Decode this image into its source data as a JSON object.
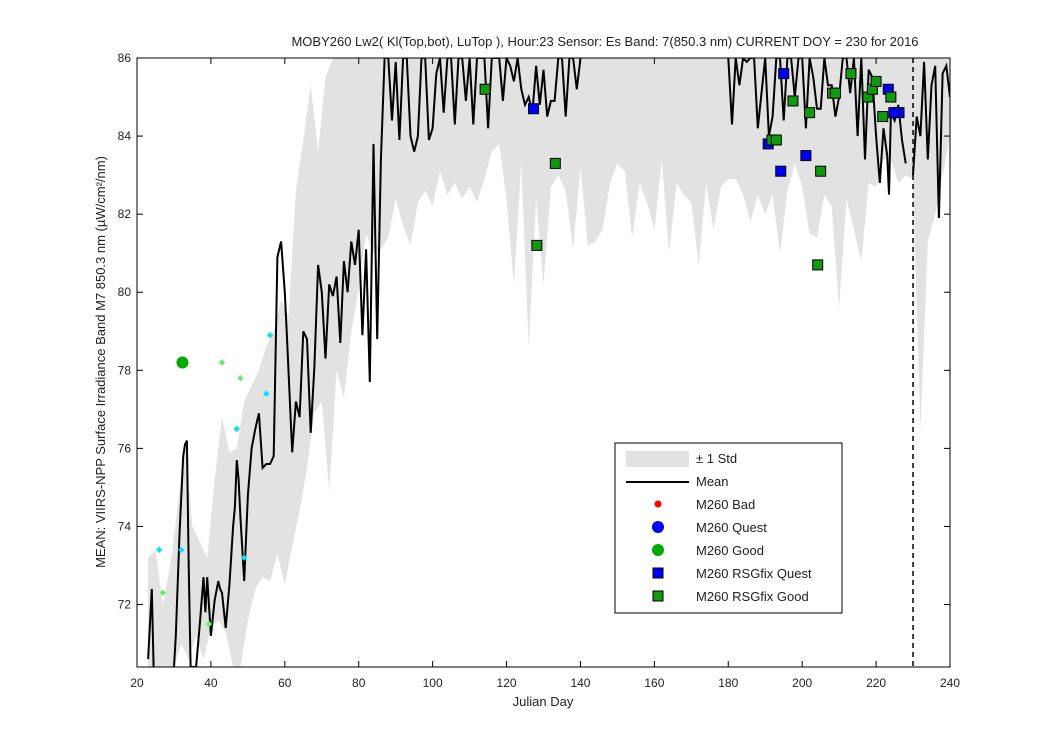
{
  "chart_data": {
    "type": "line",
    "title": "MOBY260   Lw2( Kl(Top,bot), LuTop ),   Hour:23 Sensor: Es Band: 7(850.3 nm)   CURRENT DOY = 230 for 2016",
    "xlabel": "Julian Day",
    "ylabel": "MEAN: VIIRS-NPP Surface Irradiance Band M7 850.3 nm (µW/cm²/nm)",
    "xlim": [
      20,
      240
    ],
    "ylim": [
      70.4,
      86
    ],
    "xticks": [
      "20",
      "40",
      "60",
      "80",
      "100",
      "120",
      "140",
      "160",
      "180",
      "200",
      "220",
      "240"
    ],
    "yticks": [
      "72",
      "74",
      "76",
      "78",
      "80",
      "82",
      "84",
      "86"
    ],
    "current_doy": 230,
    "colors": {
      "std_band": "#e2e2e2",
      "mean_line": "#000000",
      "bad": "#ff0000",
      "quest": "#0000ff",
      "good": "#00aa00",
      "rsg_quest": "#0000ff",
      "rsg_good": "#119911",
      "cyan_small": "#00e5ff",
      "lightgreen_small": "#66ee66"
    },
    "legend": {
      "position": "lower-right",
      "entries": [
        "± 1 Std",
        "Mean",
        "M260 Bad",
        "M260 Quest",
        "M260 Good",
        "M260 RSGfix Quest",
        "M260 RSGfix Good"
      ]
    },
    "mean": [
      [
        23,
        70.6
      ],
      [
        24,
        72.4
      ],
      [
        24.5,
        70.4
      ],
      [
        30,
        70.4
      ],
      [
        30.5,
        71.2
      ],
      [
        31.5,
        73.8
      ],
      [
        32.5,
        75.8
      ],
      [
        33,
        76.1
      ],
      [
        33.5,
        76.2
      ],
      [
        34,
        73.0
      ],
      [
        34.5,
        70.4
      ],
      [
        36,
        70.4
      ],
      [
        37,
        71.5
      ],
      [
        38,
        72.7
      ],
      [
        38.5,
        71.8
      ],
      [
        39,
        72.7
      ],
      [
        40,
        71.2
      ],
      [
        41,
        72.1
      ],
      [
        42,
        72.6
      ],
      [
        42.5,
        72.4
      ],
      [
        43,
        72.3
      ],
      [
        44,
        71.4
      ],
      [
        45,
        72.5
      ],
      [
        46,
        74.0
      ],
      [
        46.5,
        74.5
      ],
      [
        47,
        75.7
      ],
      [
        47.5,
        75.2
      ],
      [
        48,
        74.2
      ],
      [
        49,
        72.6
      ],
      [
        50,
        74.8
      ],
      [
        51,
        76.0
      ],
      [
        52,
        76.5
      ],
      [
        53,
        76.9
      ],
      [
        54,
        75.5
      ],
      [
        55,
        75.6
      ],
      [
        56,
        75.6
      ],
      [
        57,
        75.8
      ],
      [
        58,
        80.9
      ],
      [
        59,
        81.3
      ],
      [
        60,
        80.0
      ],
      [
        60.5,
        79.0
      ],
      [
        62,
        75.9
      ],
      [
        63,
        77.2
      ],
      [
        64,
        76.8
      ],
      [
        65,
        79.0
      ],
      [
        66,
        78.8
      ],
      [
        67,
        76.4
      ],
      [
        68,
        78.1
      ],
      [
        69,
        80.7
      ],
      [
        70,
        80.0
      ],
      [
        71,
        78.3
      ],
      [
        72,
        80.2
      ],
      [
        73,
        79.9
      ],
      [
        74,
        80.4
      ],
      [
        75,
        78.7
      ],
      [
        76,
        80.8
      ],
      [
        77,
        80.0
      ],
      [
        78,
        81.3
      ],
      [
        79,
        80.7
      ],
      [
        80,
        81.6
      ],
      [
        81,
        78.9
      ],
      [
        82,
        81.1
      ],
      [
        83,
        77.7
      ],
      [
        84,
        83.8
      ],
      [
        85,
        78.8
      ],
      [
        86,
        83.4
      ],
      [
        87,
        86.0
      ],
      [
        88,
        86.0
      ],
      [
        89,
        84.4
      ],
      [
        90,
        85.9
      ],
      [
        91,
        83.9
      ],
      [
        92,
        86.0
      ],
      [
        93,
        86.0
      ],
      [
        94,
        84.0
      ],
      [
        95,
        83.6
      ],
      [
        96,
        84.0
      ],
      [
        97,
        86.0
      ],
      [
        98,
        86.0
      ],
      [
        99,
        83.9
      ],
      [
        100,
        84.2
      ],
      [
        101,
        85.6
      ],
      [
        102,
        86.0
      ],
      [
        103,
        84.6
      ],
      [
        104,
        86.0
      ],
      [
        105,
        86.0
      ],
      [
        106,
        84.3
      ],
      [
        107,
        86.0
      ],
      [
        108,
        86.0
      ],
      [
        109,
        84.9
      ],
      [
        110,
        86.0
      ],
      [
        111,
        84.3
      ],
      [
        112,
        86.0
      ],
      [
        113,
        86.0
      ],
      [
        114,
        86.0
      ],
      [
        115,
        84.2
      ],
      [
        116,
        86.0
      ],
      [
        117,
        86.0
      ],
      [
        118,
        86.0
      ],
      [
        119,
        84.9
      ],
      [
        120,
        86.0
      ],
      [
        121,
        85.8
      ],
      [
        122,
        85.4
      ],
      [
        123,
        86.0
      ],
      [
        124,
        85.2
      ],
      [
        125,
        84.8
      ],
      [
        126,
        85.0
      ],
      [
        127,
        84.6
      ],
      [
        128,
        85.8
      ],
      [
        129,
        84.8
      ],
      [
        130,
        85.7
      ],
      [
        131,
        84.5
      ],
      [
        132,
        84.9
      ],
      [
        133,
        84.9
      ],
      [
        134,
        86.0
      ],
      [
        135,
        86.0
      ],
      [
        136,
        84.5
      ],
      [
        137,
        86.0
      ],
      [
        138,
        86.0
      ],
      [
        139,
        85.2
      ],
      [
        140,
        86.0
      ],
      [
        142,
        86.0
      ],
      [
        144,
        85.4
      ],
      [
        146,
        86.0
      ],
      [
        148,
        86.0
      ],
      [
        150,
        85.0
      ],
      [
        152,
        86.0
      ],
      [
        154,
        86.0
      ],
      [
        156,
        84.9
      ],
      [
        158,
        86.0
      ],
      [
        160,
        86.0
      ],
      [
        162,
        85.2
      ],
      [
        164,
        86.0
      ],
      [
        166,
        86.0
      ],
      [
        168,
        86.0
      ],
      [
        170,
        85.7
      ],
      [
        172,
        86.0
      ],
      [
        174,
        86.0
      ],
      [
        176,
        86.0
      ],
      [
        178,
        85.8
      ],
      [
        180,
        86.0
      ],
      [
        181,
        84.3
      ],
      [
        182,
        86.0
      ],
      [
        183,
        85.3
      ],
      [
        184,
        86.0
      ],
      [
        185,
        85.9
      ],
      [
        186,
        86.0
      ],
      [
        187,
        86.0
      ],
      [
        188,
        84.2
      ],
      [
        189,
        85.1
      ],
      [
        190,
        86.0
      ],
      [
        191,
        84.0
      ],
      [
        192,
        84.5
      ],
      [
        193,
        86.0
      ],
      [
        194,
        86.0
      ],
      [
        195,
        84.4
      ],
      [
        196,
        86.0
      ],
      [
        197,
        86.0
      ],
      [
        198,
        85.0
      ],
      [
        199,
        86.0
      ],
      [
        200,
        86.0
      ],
      [
        201,
        84.2
      ],
      [
        202,
        86.0
      ],
      [
        203,
        85.5
      ],
      [
        204,
        84.7
      ],
      [
        205,
        84.7
      ],
      [
        206,
        86.0
      ],
      [
        207,
        85.3
      ],
      [
        208,
        85.3
      ],
      [
        209,
        84.5
      ],
      [
        210,
        85.0
      ],
      [
        211,
        86.0
      ],
      [
        212,
        86.0
      ],
      [
        213,
        85.1
      ],
      [
        214,
        86.0
      ],
      [
        215,
        84.0
      ],
      [
        216,
        86.0
      ],
      [
        217,
        83.4
      ],
      [
        218,
        85.7
      ],
      [
        219,
        85.5
      ],
      [
        220,
        84.0
      ],
      [
        221,
        82.8
      ],
      [
        222,
        84.2
      ],
      [
        223,
        83.5
      ],
      [
        223.5,
        82.5
      ],
      [
        224,
        84.6
      ],
      [
        225,
        84.4
      ],
      [
        226,
        84.8
      ],
      [
        227,
        83.9
      ],
      [
        228,
        83.3
      ],
      [
        230,
        83.0
      ],
      [
        231,
        84.5
      ],
      [
        232,
        84.0
      ],
      [
        233,
        85.9
      ],
      [
        234,
        83.4
      ],
      [
        235,
        85.3
      ],
      [
        236,
        85.8
      ],
      [
        237,
        81.9
      ],
      [
        238,
        85.6
      ],
      [
        239,
        85.8
      ],
      [
        240,
        85.0
      ]
    ],
    "std_upper": [
      [
        23,
        73.2
      ],
      [
        25,
        73.4
      ],
      [
        27,
        72.0
      ],
      [
        29,
        73.0
      ],
      [
        31,
        74.5
      ],
      [
        33,
        76.2
      ],
      [
        35,
        74.0
      ],
      [
        37,
        73.6
      ],
      [
        39,
        73.2
      ],
      [
        41,
        75.2
      ],
      [
        43,
        76.8
      ],
      [
        45,
        75.9
      ],
      [
        47,
        76.0
      ],
      [
        49,
        77.2
      ],
      [
        51,
        77.6
      ],
      [
        53,
        78.0
      ],
      [
        55,
        78.6
      ],
      [
        57,
        79.0
      ],
      [
        59,
        79.8
      ],
      [
        61,
        79.4
      ],
      [
        63,
        82.6
      ],
      [
        65,
        83.9
      ],
      [
        67,
        85.3
      ],
      [
        69,
        83.6
      ],
      [
        71,
        85.5
      ],
      [
        73,
        86.0
      ],
      [
        80,
        86.0
      ],
      [
        90,
        86.0
      ],
      [
        100,
        86.0
      ],
      [
        120,
        86.0
      ],
      [
        140,
        86.0
      ],
      [
        160,
        86.0
      ],
      [
        180,
        86.0
      ],
      [
        200,
        86.0
      ],
      [
        220,
        86.0
      ],
      [
        230,
        86.0
      ],
      [
        240,
        86.0
      ]
    ],
    "std_lower": [
      [
        23,
        70.4
      ],
      [
        30,
        70.4
      ],
      [
        32,
        71.0
      ],
      [
        34,
        70.6
      ],
      [
        36,
        71.2
      ],
      [
        38,
        70.6
      ],
      [
        40,
        71.4
      ],
      [
        42,
        71.6
      ],
      [
        44,
        71.3
      ],
      [
        46,
        70.4
      ],
      [
        48,
        70.4
      ],
      [
        50,
        71.6
      ],
      [
        52,
        72.4
      ],
      [
        54,
        72.7
      ],
      [
        56,
        72.6
      ],
      [
        58,
        73.3
      ],
      [
        60,
        72.5
      ],
      [
        62,
        73.5
      ],
      [
        64,
        74.4
      ],
      [
        66,
        75.5
      ],
      [
        68,
        76.9
      ],
      [
        70,
        77.2
      ],
      [
        72,
        74.9
      ],
      [
        74,
        78.0
      ],
      [
        76,
        77.3
      ],
      [
        78,
        79.0
      ],
      [
        80,
        80.1
      ],
      [
        82,
        81.5
      ],
      [
        84,
        81.0
      ],
      [
        86,
        81.1
      ],
      [
        88,
        81.4
      ],
      [
        90,
        82.4
      ],
      [
        92,
        81.7
      ],
      [
        94,
        81.2
      ],
      [
        96,
        82.3
      ],
      [
        98,
        82.6
      ],
      [
        100,
        82.2
      ],
      [
        102,
        83.1
      ],
      [
        104,
        82.5
      ],
      [
        106,
        82.8
      ],
      [
        108,
        82.4
      ],
      [
        110,
        82.7
      ],
      [
        112,
        82.3
      ],
      [
        114,
        82.9
      ],
      [
        116,
        83.6
      ],
      [
        118,
        83.8
      ],
      [
        120,
        82.4
      ],
      [
        122,
        80.2
      ],
      [
        124,
        83.3
      ],
      [
        126,
        78.6
      ],
      [
        128,
        82.4
      ],
      [
        130,
        80.2
      ],
      [
        132,
        82.7
      ],
      [
        134,
        83.0
      ],
      [
        136,
        82.6
      ],
      [
        138,
        81.1
      ],
      [
        140,
        83.2
      ],
      [
        142,
        81.2
      ],
      [
        144,
        81.3
      ],
      [
        146,
        81.6
      ],
      [
        148,
        82.8
      ],
      [
        150,
        83.3
      ],
      [
        152,
        83.1
      ],
      [
        154,
        81.4
      ],
      [
        156,
        82.8
      ],
      [
        158,
        82.3
      ],
      [
        160,
        81.6
      ],
      [
        162,
        83.4
      ],
      [
        164,
        81.0
      ],
      [
        166,
        82.8
      ],
      [
        168,
        82.5
      ],
      [
        170,
        82.3
      ],
      [
        172,
        80.7
      ],
      [
        174,
        82.8
      ],
      [
        176,
        81.6
      ],
      [
        178,
        82.7
      ],
      [
        180,
        82.9
      ],
      [
        182,
        82.9
      ],
      [
        184,
        82.5
      ],
      [
        186,
        81.8
      ],
      [
        188,
        82.5
      ],
      [
        190,
        82.0
      ],
      [
        192,
        82.5
      ],
      [
        194,
        81.0
      ],
      [
        196,
        82.6
      ],
      [
        198,
        83.3
      ],
      [
        200,
        82.7
      ],
      [
        202,
        81.5
      ],
      [
        204,
        81.4
      ],
      [
        206,
        82.5
      ],
      [
        208,
        82.2
      ],
      [
        210,
        79.6
      ],
      [
        212,
        82.4
      ],
      [
        214,
        81.6
      ],
      [
        216,
        80.8
      ],
      [
        218,
        82.8
      ],
      [
        220,
        82.7
      ],
      [
        222,
        83.4
      ],
      [
        224,
        83.4
      ],
      [
        226,
        82.8
      ],
      [
        228,
        83.0
      ],
      [
        230,
        82.9
      ],
      [
        232,
        76.5
      ],
      [
        234,
        81.3
      ],
      [
        236,
        82.0
      ],
      [
        238,
        83.0
      ],
      [
        240,
        84.0
      ]
    ],
    "m260_good": [
      [
        32.3,
        78.2
      ]
    ],
    "cyan_small": [
      [
        26,
        73.4
      ],
      [
        32,
        73.4
      ],
      [
        47,
        76.5
      ],
      [
        49,
        73.2
      ],
      [
        55,
        77.4
      ],
      [
        56,
        78.9
      ]
    ],
    "lightgreen_small": [
      [
        27,
        72.3
      ],
      [
        39.5,
        71.5
      ],
      [
        43,
        78.2
      ],
      [
        48,
        77.8
      ]
    ],
    "rsgfix_quest": [
      [
        127.3,
        84.7
      ],
      [
        190.8,
        83.8
      ],
      [
        194.2,
        83.1
      ],
      [
        195,
        85.6
      ],
      [
        201,
        83.5
      ],
      [
        223.3,
        85.2
      ],
      [
        226.2,
        84.6
      ],
      [
        224.8,
        84.6
      ]
    ],
    "rsgfix_good": [
      [
        114.2,
        85.2
      ],
      [
        128.2,
        81.2
      ],
      [
        133.2,
        83.3
      ],
      [
        191.8,
        83.9
      ],
      [
        193,
        83.9
      ],
      [
        197.5,
        84.9
      ],
      [
        202,
        84.6
      ],
      [
        204.2,
        80.7
      ],
      [
        205,
        83.1
      ],
      [
        208.2,
        85.1
      ],
      [
        209,
        85.1
      ],
      [
        213.2,
        85.6
      ],
      [
        217.8,
        85.0
      ],
      [
        219,
        85.2
      ],
      [
        220,
        85.4
      ],
      [
        221.8,
        84.5
      ],
      [
        224,
        85.0
      ]
    ]
  }
}
